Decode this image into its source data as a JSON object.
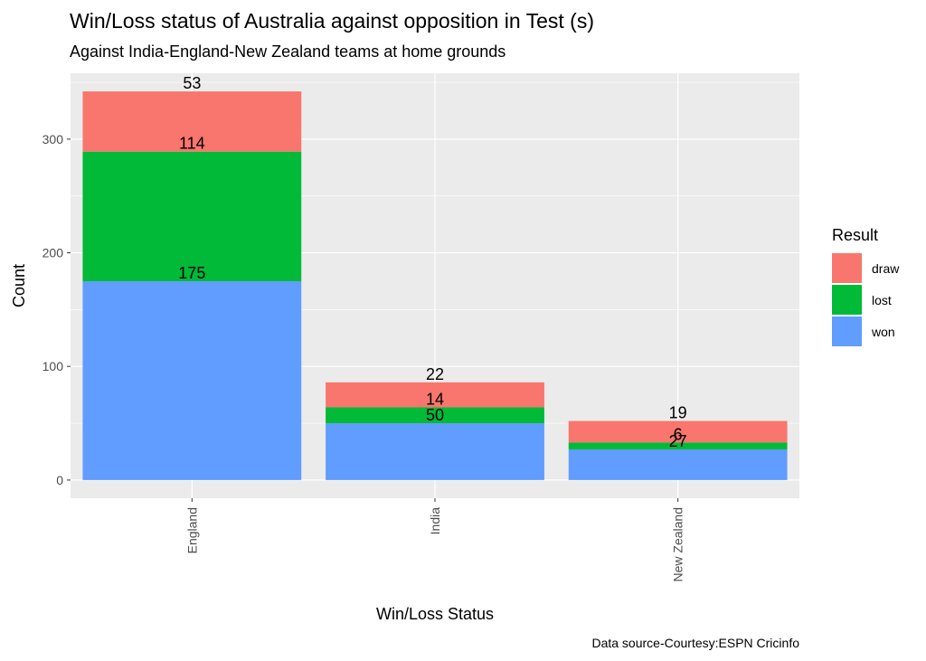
{
  "chart_data": {
    "type": "bar",
    "stacked": true,
    "title": "Win/Loss status of Australia against opposition in Test (s)",
    "subtitle": "Against India-England-New Zealand  teams at home grounds",
    "xlabel": "Win/Loss Status",
    "ylabel": "Count",
    "caption": "Data source-Courtesy:ESPN Cricinfo",
    "categories": [
      "England",
      "India",
      "New Zealand"
    ],
    "series": [
      {
        "name": "won",
        "values": [
          175,
          50,
          27
        ],
        "color": "#619CFF"
      },
      {
        "name": "lost",
        "values": [
          114,
          14,
          6
        ],
        "color": "#00BA38"
      },
      {
        "name": "draw",
        "values": [
          53,
          22,
          19
        ],
        "color": "#F8766D"
      }
    ],
    "legend_title": "Result",
    "legend_order": [
      "draw",
      "lost",
      "won"
    ],
    "legend_position": "right",
    "ylim": [
      -16,
      358
    ],
    "yticks": [
      0,
      100,
      200,
      300
    ],
    "grid": true,
    "panel_color": "#EBEBEB",
    "x_tick_rotation": -90
  }
}
